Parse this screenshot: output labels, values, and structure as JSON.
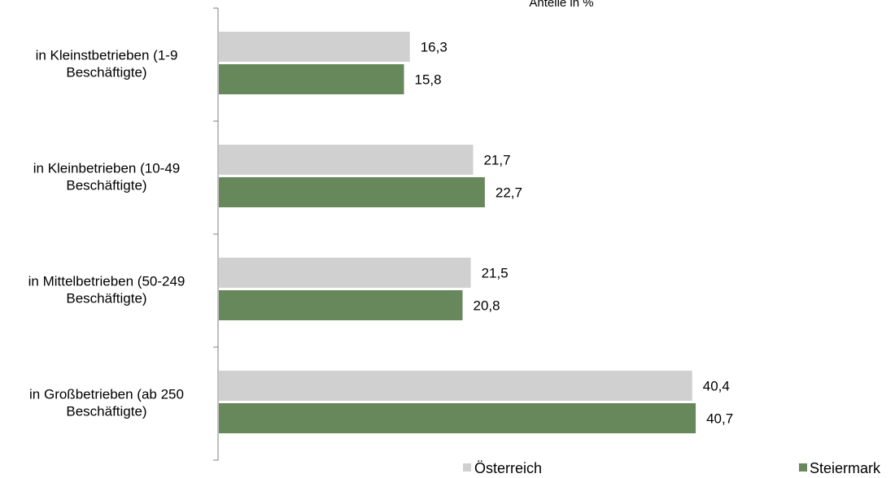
{
  "chart_data": {
    "type": "bar",
    "orientation": "horizontal",
    "title": "",
    "unit_label": "Anteile in %",
    "xlabel": "",
    "ylabel": "",
    "categories": [
      [
        "in Kleinstbetrieben (1-9",
        "Beschäftigte)"
      ],
      [
        "in Kleinbetrieben (10-49",
        "Beschäftigte)"
      ],
      [
        "in Mittelbetrieben (50-249",
        "Beschäftigte)"
      ],
      [
        "in Großbetrieben (ab 250",
        "Beschäftigte)"
      ]
    ],
    "series": [
      {
        "name": "Österreich",
        "color": "#d0d0d0",
        "values": [
          16.3,
          21.7,
          21.5,
          40.4
        ],
        "labels": [
          "16,3",
          "21,7",
          "21,5",
          "40,4"
        ]
      },
      {
        "name": "Steiermark",
        "color": "#66885b",
        "values": [
          15.8,
          22.7,
          20.8,
          40.7
        ],
        "labels": [
          "15,8",
          "22,7",
          "20,8",
          "40,7"
        ]
      }
    ],
    "xlim": [
      0,
      44
    ],
    "grid": false,
    "legend_position": "bottom"
  }
}
